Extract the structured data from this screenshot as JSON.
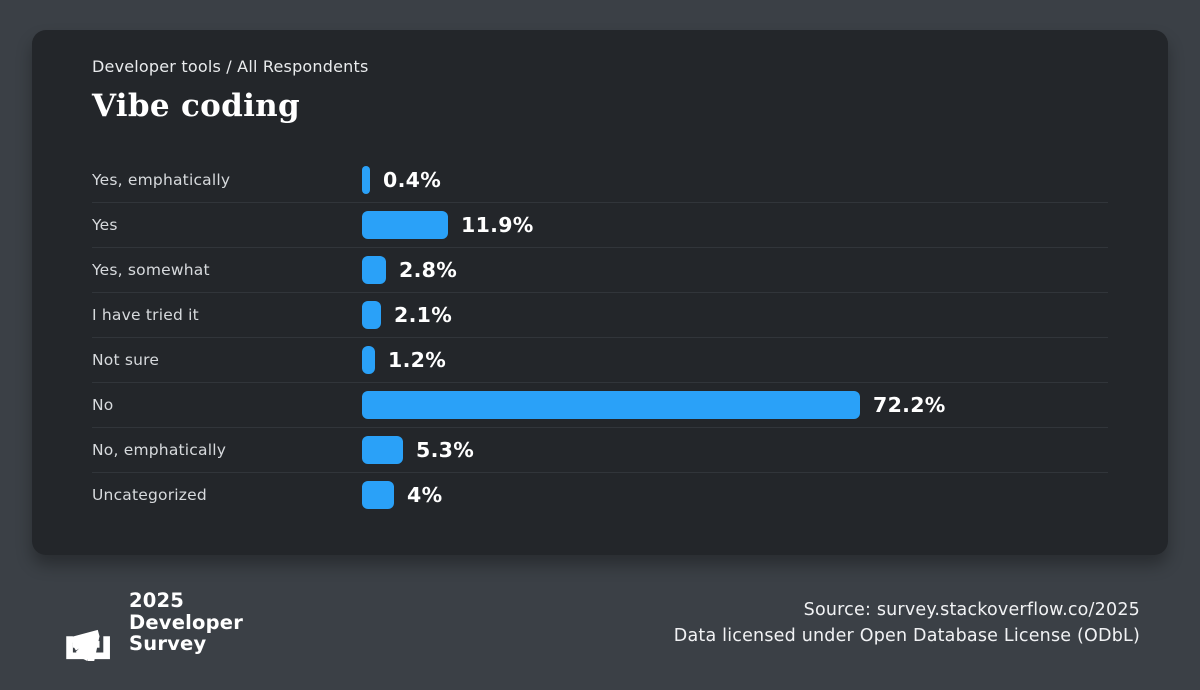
{
  "card": {
    "subtitle": "Developer tools / All Respondents",
    "title": "Vibe coding"
  },
  "chart_data": {
    "type": "bar",
    "orientation": "horizontal",
    "title": "Vibe coding",
    "subtitle": "Developer tools / All Respondents",
    "categories": [
      "Yes, emphatically",
      "Yes",
      "Yes, somewhat",
      "I have tried it",
      "Not sure",
      "No",
      "No, emphatically",
      "Uncategorized"
    ],
    "values": [
      0.4,
      11.9,
      2.8,
      2.1,
      1.2,
      72.2,
      5.3,
      4
    ],
    "value_labels": [
      "0.4%",
      "11.9%",
      "2.8%",
      "2.1%",
      "1.2%",
      "72.2%",
      "5.3%",
      "4%"
    ],
    "unit": "%",
    "bar_color": "#2aa1f8",
    "grid": false,
    "legend": false
  },
  "footer": {
    "logo": {
      "icon": "stackoverflow-survey-logo",
      "line1": "2025",
      "line2": "Developer",
      "line3": "Survey"
    },
    "source_line1": "Source: survey.stackoverflow.co/2025",
    "source_line2": "Data licensed under Open Database License (ODbL)"
  },
  "colors": {
    "page_bg": "#3b4046",
    "card_bg": "#23262a",
    "divider": "#31353a",
    "accent_blue": "#2aa1f8",
    "label_text": "#d7dadd",
    "value_text": "#ffffff"
  }
}
